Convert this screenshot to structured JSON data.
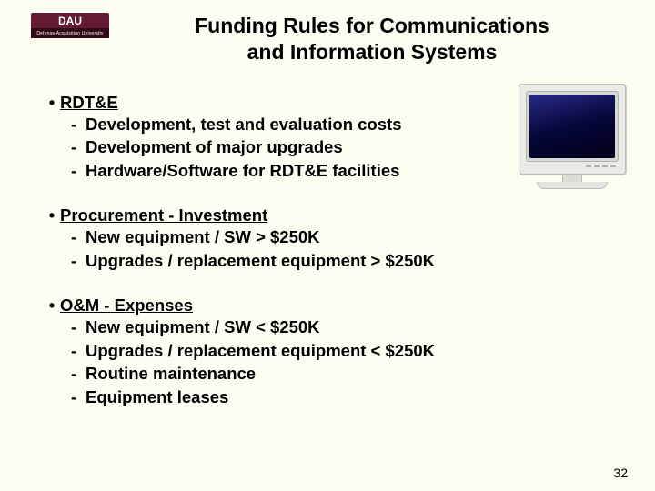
{
  "logo": {
    "letters": "DAU",
    "subtitle": "Defense Acquisition University"
  },
  "title_line1": "Funding Rules for Communications",
  "title_line2": "and Information Systems",
  "sections": [
    {
      "heading": "RDT&E",
      "items": [
        "Development, test and evaluation costs",
        "Development of major upgrades",
        "Hardware/Software for RDT&E facilities"
      ]
    },
    {
      "heading": "Procurement - Investment",
      "items": [
        "New equipment / SW > $250K",
        "Upgrades / replacement equipment > $250K"
      ]
    },
    {
      "heading": "O&M - Expenses",
      "items": [
        "New equipment / SW < $250K",
        "Upgrades / replacement equipment < $250K",
        "Routine maintenance",
        "Equipment leases"
      ]
    }
  ],
  "page_number": "32",
  "colors": {
    "slide_bg": "#fdfcf0",
    "logo_top": "#651c32",
    "logo_bottom": "#300a17",
    "text": "#000000",
    "monitor_screen": "#0b0b5a"
  },
  "typography": {
    "title_fontsize_pt": 17,
    "body_fontsize_pt": 14,
    "pagenum_fontsize_pt": 10,
    "font_family": "Arial",
    "weight": "bold"
  }
}
